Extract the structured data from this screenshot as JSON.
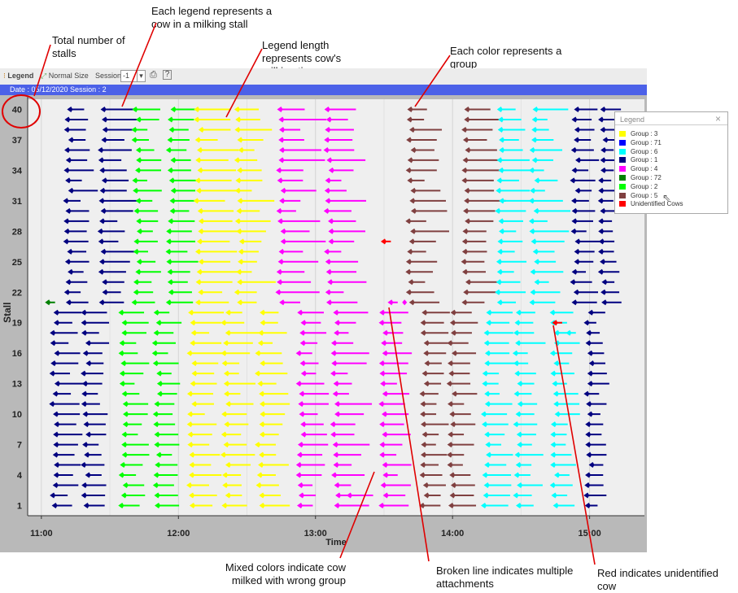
{
  "annotations": {
    "total_stalls": "Total number of stalls",
    "legend_cow": "Each legend represents a cow in a milking stall",
    "legend_length": "Legend length represents cow's milking time",
    "color_group": "Each color represents a group",
    "mixed_colors": "Mixed colors indicate cow milked with wrong group",
    "broken_line": "Broken line indicates multiple attachments",
    "red_unidentified": "Red indicates unidentified cow"
  },
  "toolbar": {
    "legend_label": "Legend",
    "normal_size_label": "Normal Size",
    "session_label": "Session",
    "session_value": "-1"
  },
  "session_bar": {
    "text": "Date : 05/12/2020   Session : 2"
  },
  "legend": {
    "title": "Legend",
    "close": "×",
    "items": [
      {
        "label": "Group : 3",
        "color": "#ffff00"
      },
      {
        "label": "Group : 71",
        "color": "#0000ff"
      },
      {
        "label": "Group : 6",
        "color": "#00ffff"
      },
      {
        "label": "Group : 1",
        "color": "#000080"
      },
      {
        "label": "Group : 4",
        "color": "#ff00ff"
      },
      {
        "label": "Group : 72",
        "color": "#008000"
      },
      {
        "label": "Group : 2",
        "color": "#00ff00"
      },
      {
        "label": "Group : 5",
        "color": "#804040"
      },
      {
        "label": "Unidentified Cows",
        "color": "#ff0000"
      }
    ]
  },
  "chart_data": {
    "type": "scatter",
    "title": "",
    "xlabel": "Time",
    "ylabel": "Stall",
    "x_ticks": [
      "11:00",
      "12:00",
      "13:00",
      "14:00",
      "15:00"
    ],
    "y_ticks": [
      "1",
      "4",
      "7",
      "10",
      "13",
      "16",
      "19",
      "22",
      "25",
      "28",
      "31",
      "34",
      "37",
      "40"
    ],
    "ylim": [
      0,
      41
    ],
    "xlim_hours": [
      10.9,
      15.4
    ],
    "grid": "vertical",
    "colors": {
      "g3": "#ffff00",
      "g71": "#0000ff",
      "g6": "#00ffff",
      "g1": "#000080",
      "g4": "#ff00ff",
      "g72": "#008000",
      "g2": "#00ff00",
      "g5": "#804040",
      "unidentified": "#ff0000"
    },
    "upper_session": {
      "stalls": [
        21,
        40
      ],
      "columns": [
        {
          "group": "g1",
          "start": 11.2,
          "min": 5,
          "max": 12
        },
        {
          "group": "g1",
          "start": 11.45,
          "min": 6,
          "max": 16
        },
        {
          "group": "g2",
          "start": 11.7,
          "min": 5,
          "max": 12
        },
        {
          "group": "g2",
          "start": 11.95,
          "min": 7,
          "max": 14
        },
        {
          "group": "g3",
          "start": 12.15,
          "min": 8,
          "max": 18
        },
        {
          "group": "g3",
          "start": 12.45,
          "min": 5,
          "max": 16
        },
        {
          "group": "g4",
          "start": 12.75,
          "min": 6,
          "max": 20
        },
        {
          "group": "g4",
          "start": 13.1,
          "min": 5,
          "max": 18
        },
        {
          "group": "g5",
          "start": 13.7,
          "min": 6,
          "max": 16
        },
        {
          "group": "g5",
          "start": 14.1,
          "min": 8,
          "max": 18
        },
        {
          "group": "g6",
          "start": 14.35,
          "min": 6,
          "max": 14
        },
        {
          "group": "g6",
          "start": 14.6,
          "min": 5,
          "max": 18
        },
        {
          "group": "g1",
          "start": 14.9,
          "min": 4,
          "max": 10
        },
        {
          "group": "g1",
          "start": 15.1,
          "min": 4,
          "max": 8
        }
      ]
    },
    "lower_session": {
      "stalls": [
        1,
        20
      ],
      "columns": [
        {
          "group": "g1",
          "start": 11.1,
          "min": 6,
          "max": 12
        },
        {
          "group": "g1",
          "start": 11.33,
          "min": 5,
          "max": 11
        },
        {
          "group": "g2",
          "start": 11.6,
          "min": 5,
          "max": 12
        },
        {
          "group": "g2",
          "start": 11.85,
          "min": 5,
          "max": 10
        },
        {
          "group": "g3",
          "start": 12.1,
          "min": 6,
          "max": 15
        },
        {
          "group": "g3",
          "start": 12.35,
          "min": 5,
          "max": 14
        },
        {
          "group": "g3",
          "start": 12.6,
          "min": 5,
          "max": 13
        },
        {
          "group": "g4",
          "start": 12.9,
          "min": 5,
          "max": 12
        },
        {
          "group": "g4",
          "start": 13.15,
          "min": 5,
          "max": 16
        },
        {
          "group": "g4",
          "start": 13.5,
          "min": 5,
          "max": 12
        },
        {
          "group": "g5",
          "start": 13.8,
          "min": 5,
          "max": 11
        },
        {
          "group": "g5",
          "start": 14.0,
          "min": 5,
          "max": 11
        },
        {
          "group": "g6",
          "start": 14.25,
          "min": 5,
          "max": 12
        },
        {
          "group": "g6",
          "start": 14.48,
          "min": 5,
          "max": 12
        },
        {
          "group": "g6",
          "start": 14.75,
          "min": 5,
          "max": 10
        },
        {
          "group": "g1",
          "start": 15.0,
          "min": 4,
          "max": 9
        }
      ]
    },
    "special_points": [
      {
        "stall": 21,
        "start": 11.05,
        "group": "g72"
      },
      {
        "stall": 27,
        "start": 13.5,
        "group": "unidentified"
      },
      {
        "stall": 19,
        "start": 14.75,
        "group": "unidentified"
      },
      {
        "stall": 21,
        "start": 13.55,
        "group": "g4",
        "broken": true
      },
      {
        "stall": 2,
        "start": 13.25,
        "group": "g4"
      },
      {
        "stall": 18,
        "start": 14.85,
        "group": "g6"
      }
    ]
  }
}
